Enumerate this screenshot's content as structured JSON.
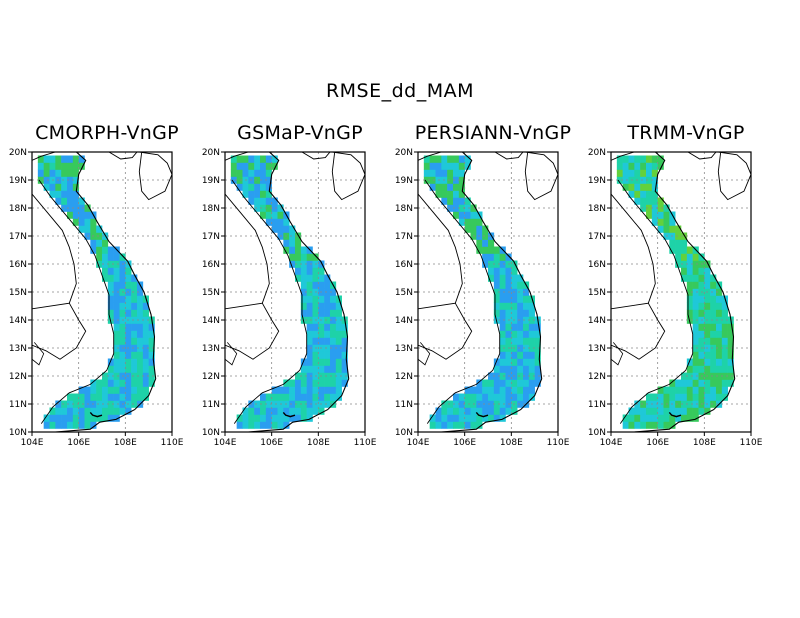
{
  "figure": {
    "title": "RMSE_dd_MAM"
  },
  "axes": {
    "lat_labels": [
      "20N",
      "19N",
      "18N",
      "17N",
      "16N",
      "15N",
      "14N",
      "13N",
      "12N",
      "11N",
      "10N"
    ],
    "lon_labels": [
      "104E",
      "106E",
      "108E",
      "110E"
    ],
    "lat_range": [
      10,
      20
    ],
    "lon_range": [
      104,
      110
    ]
  },
  "colors": {
    "palette": [
      "#1f2bd6",
      "#2c63f0",
      "#2a9ef0",
      "#1fc8d8",
      "#1ed2a8",
      "#37c95c",
      "#63d13c",
      "#a8d83a",
      "#e8d83a",
      "#f0a02a",
      "#f05a5a",
      "#e62878"
    ],
    "coast": "#000000",
    "grid": "#888888"
  },
  "panels": [
    {
      "id": "cmorph",
      "title": "CMORPH-VnGP",
      "mean_level": 3,
      "hot_spots": []
    },
    {
      "id": "gsmap",
      "title": "GSMaP-VnGP",
      "mean_level": 3,
      "hot_spots": [
        {
          "lon": 105.5,
          "lat": 19.75,
          "level": 11
        },
        {
          "lon": 105.75,
          "lat": 19.75,
          "level": 10
        },
        {
          "lon": 105.5,
          "lat": 19.5,
          "level": 9
        },
        {
          "lon": 105.25,
          "lat": 19.75,
          "level": 8
        },
        {
          "lon": 105.0,
          "lat": 10.75,
          "level": 0
        },
        {
          "lon": 105.25,
          "lat": 10.5,
          "level": 0
        },
        {
          "lon": 105.5,
          "lat": 10.75,
          "level": 0
        },
        {
          "lon": 104.75,
          "lat": 10.5,
          "level": 1
        },
        {
          "lon": 108.5,
          "lat": 13.25,
          "level": 1
        },
        {
          "lon": 108.75,
          "lat": 13.75,
          "level": 1
        }
      ]
    },
    {
      "id": "persiann",
      "title": "PERSIANN-VnGP",
      "mean_level": 3,
      "hot_spots": [
        {
          "lon": 106.0,
          "lat": 18.25,
          "level": 9
        },
        {
          "lon": 106.25,
          "lat": 18.0,
          "level": 8
        },
        {
          "lon": 104.75,
          "lat": 10.75,
          "level": 1
        },
        {
          "lon": 105.0,
          "lat": 10.5,
          "level": 1
        }
      ]
    },
    {
      "id": "trmm",
      "title": "TRMM-VnGP",
      "mean_level": 4,
      "hot_spots": [
        {
          "lon": 105.25,
          "lat": 19.25,
          "level": 7
        },
        {
          "lon": 106.0,
          "lat": 18.5,
          "level": 7
        }
      ]
    }
  ]
}
